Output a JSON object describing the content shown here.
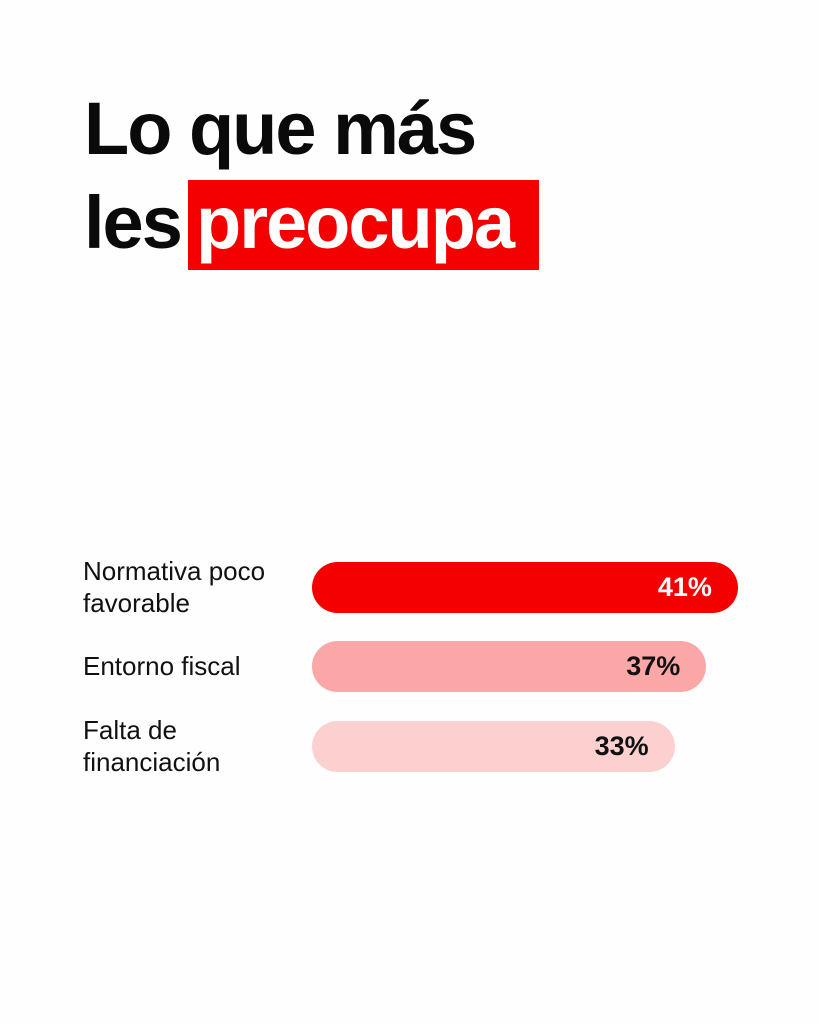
{
  "title": {
    "line1": "Lo que más",
    "line2_plain": "les",
    "line2_highlight": "preocupa"
  },
  "colors": {
    "accent": "#f40000",
    "bar2": "#fca7a7",
    "bar3": "#fdd0d0"
  },
  "chart_data": {
    "type": "bar",
    "orientation": "horizontal",
    "categories": [
      "Normativa poco favorable",
      "Entorno fiscal",
      "Falta de financiación"
    ],
    "values": [
      41,
      37,
      33
    ],
    "labels": [
      "41%",
      "37%",
      "33%"
    ],
    "bar_colors": [
      "#f40000",
      "#fca7a7",
      "#fdd0d0"
    ],
    "label_colors": [
      "#ffffff",
      "#111111",
      "#111111"
    ],
    "title": "Lo que más les preocupa"
  }
}
